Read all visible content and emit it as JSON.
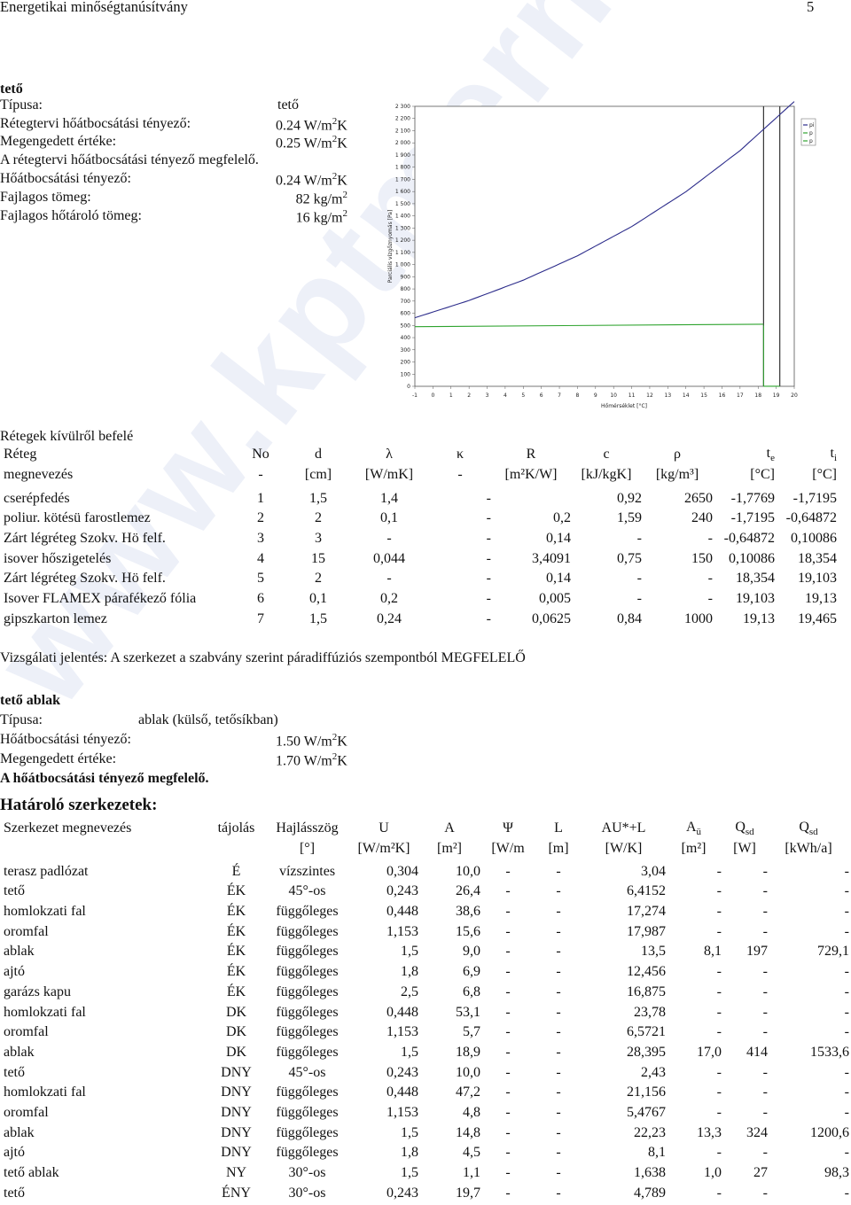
{
  "header": {
    "title": "Energetikai minőségtanúsítvány",
    "page": "5"
  },
  "roof": {
    "heading": "tető",
    "rows": [
      {
        "label": "Típusa:",
        "value": "tető"
      },
      {
        "label": "Rétegtervi hőátbocsátási tényező:",
        "value": "0.24 W/m",
        "sup": "2",
        "tail": "K"
      },
      {
        "label": "Megengedett értéke:",
        "value": "0.25 W/m",
        "sup": "2",
        "tail": "K"
      },
      {
        "label": "Hőátbocsátási tényező:",
        "value": "0.24 W/m",
        "sup": "2",
        "tail": "K"
      },
      {
        "label": "Fajlagos tömeg:",
        "value": "82 kg/m",
        "sup": "2",
        "tail": ""
      },
      {
        "label": "Fajlagos hőtároló tömeg:",
        "value": "16 kg/m",
        "sup": "2",
        "tail": ""
      }
    ],
    "statement": "A rétegtervi hőátbocsátási tényező megfelelő."
  },
  "chart_data": {
    "type": "line",
    "xlabel": "Hőmérséklet [°C]",
    "ylabel": "Parciális vízgőznyomás [Pa]",
    "xlim": [
      -1,
      20
    ],
    "ylim": [
      0,
      2300
    ],
    "xticks": [
      "-1",
      "0",
      "1",
      "2",
      "3",
      "4",
      "5",
      "6",
      "7",
      "8",
      "9",
      "10",
      "11",
      "12",
      "13",
      "14",
      "15",
      "16",
      "17",
      "18",
      "19",
      "20"
    ],
    "yticks": [
      "0",
      "100",
      "200",
      "300",
      "400",
      "500",
      "600",
      "700",
      "800",
      "900",
      "1 000",
      "1 100",
      "1 200",
      "1 300",
      "1 400",
      "1 500",
      "1 600",
      "1 700",
      "1 800",
      "1 900",
      "2 000",
      "2 100",
      "2 200",
      "2 300"
    ],
    "legend": [
      "pi",
      "p",
      "p"
    ],
    "series": [
      {
        "color": "#2b2b8a",
        "x": [
          -1,
          2,
          5,
          8,
          11,
          14,
          17,
          20
        ],
        "values": [
          563,
          705,
          872,
          1072,
          1312,
          1598,
          1937,
          2339
        ]
      },
      {
        "color": "#2ea32e",
        "x": [
          -1,
          18.3
        ],
        "values": [
          490,
          510
        ]
      },
      {
        "color": "#2ea32e",
        "x": [
          18.3,
          19.2
        ],
        "values": [
          1,
          1
        ]
      }
    ],
    "vlines": [
      18.3,
      19.2
    ]
  },
  "layers": {
    "title": "Rétegek kívülről befelé",
    "headers1": [
      "Réteg",
      "No",
      "d",
      "λ",
      "κ",
      "R",
      "c",
      "ρ",
      "t",
      "t"
    ],
    "headers2": [
      "megnevezés",
      "-",
      "[cm]",
      "[W/mK]",
      "-",
      "[m²K/W]",
      "[kJ/kgK]",
      "[kg/m³]",
      "[°C]",
      "[°C]"
    ],
    "te_sub": "e",
    "ti_sub": "i",
    "rows": [
      [
        "cserépfedés",
        "1",
        "1,5",
        "1,4",
        "-",
        "",
        "0,92",
        "2650",
        "-1,7769",
        "-1,7195"
      ],
      [
        "poliur. kötésü farostlemez",
        "2",
        "2",
        "0,1",
        "-",
        "0,2",
        "1,59",
        "240",
        "-1,7195",
        "-0,64872"
      ],
      [
        "Zárt légréteg Szokv. Hö felf.",
        "3",
        "3",
        "-",
        "-",
        "0,14",
        "-",
        "-",
        "-0,64872",
        "0,10086"
      ],
      [
        "isover hőszigetelés",
        "4",
        "15",
        "0,044",
        "-",
        "3,4091",
        "0,75",
        "150",
        "0,10086",
        "18,354"
      ],
      [
        "Zárt légréteg Szokv. Hö felf.",
        "5",
        "2",
        "-",
        "-",
        "0,14",
        "-",
        "-",
        "18,354",
        "19,103"
      ],
      [
        "Isover FLAMEX párafékező fólia",
        "6",
        "0,1",
        "0,2",
        "-",
        "0,005",
        "-",
        "-",
        "19,103",
        "19,13"
      ],
      [
        "gipszkarton lemez",
        "7",
        "1,5",
        "0,24",
        "-",
        "0,0625",
        "0,84",
        "1000",
        "19,13",
        "19,465"
      ]
    ],
    "report": "Vizsgálati jelentés: A szerkezet a szabvány szerint páradiffúziós szempontból MEGFELELŐ"
  },
  "window": {
    "heading": "tető ablak",
    "type_label": "Típusa:",
    "type_value": "ablak (külső, tetősíkban)",
    "u_label": "Hőátbocsátási tényező:",
    "u_value": "1.50 W/m",
    "limit_label": "Megengedett értéke:",
    "limit_value": "1.70 W/m",
    "sup": "2",
    "tail": "K",
    "statement": "A hőátbocsátási tényező megfelelő."
  },
  "boundary": {
    "title": "Határoló szerkezetek:",
    "headers1": [
      "Szerkezet megnevezés",
      "tájolás",
      "Hajlásszög",
      "U",
      "A",
      "Ψ",
      "L",
      "AU*+L",
      "A",
      "Q",
      "Q"
    ],
    "headers2": [
      "",
      "",
      "[°]",
      "[W/m²K]",
      "[m²]",
      "[W/m",
      "[m]",
      "[W/K]",
      "[m²]",
      "[W]",
      "[kWh/a]"
    ],
    "a_sub": "ü",
    "q_sub": "sd",
    "rows": [
      [
        "terasz padlózat",
        "É",
        "vízszintes",
        "0,304",
        "10,0",
        "-",
        "-",
        "3,04",
        "-",
        "-",
        "-"
      ],
      [
        "tető",
        "ÉK",
        "45°-os",
        "0,243",
        "26,4",
        "-",
        "-",
        "6,4152",
        "-",
        "-",
        "-"
      ],
      [
        "homlokzati fal",
        "ÉK",
        "függőleges",
        "0,448",
        "38,6",
        "-",
        "-",
        "17,274",
        "-",
        "-",
        "-"
      ],
      [
        "oromfal",
        "ÉK",
        "függőleges",
        "1,153",
        "15,6",
        "-",
        "-",
        "17,987",
        "-",
        "-",
        "-"
      ],
      [
        "ablak",
        "ÉK",
        "függőleges",
        "1,5",
        "9,0",
        "-",
        "-",
        "13,5",
        "8,1",
        "197",
        "729,1"
      ],
      [
        "ajtó",
        "ÉK",
        "függőleges",
        "1,8",
        "6,9",
        "-",
        "-",
        "12,456",
        "-",
        "-",
        "-"
      ],
      [
        "garázs kapu",
        "ÉK",
        "függőleges",
        "2,5",
        "6,8",
        "-",
        "-",
        "16,875",
        "-",
        "-",
        "-"
      ],
      [
        "homlokzati fal",
        "DK",
        "függőleges",
        "0,448",
        "53,1",
        "-",
        "-",
        "23,78",
        "-",
        "-",
        "-"
      ],
      [
        "oromfal",
        "DK",
        "függőleges",
        "1,153",
        "5,7",
        "-",
        "-",
        "6,5721",
        "-",
        "-",
        "-"
      ],
      [
        "ablak",
        "DK",
        "függőleges",
        "1,5",
        "18,9",
        "-",
        "-",
        "28,395",
        "17,0",
        "414",
        "1533,6"
      ],
      [
        "tető",
        "DNY",
        "45°-os",
        "0,243",
        "10,0",
        "-",
        "-",
        "2,43",
        "-",
        "-",
        "-"
      ],
      [
        "homlokzati fal",
        "DNY",
        "függőleges",
        "0,448",
        "47,2",
        "-",
        "-",
        "21,156",
        "-",
        "-",
        "-"
      ],
      [
        "oromfal",
        "DNY",
        "függőleges",
        "1,153",
        "4,8",
        "-",
        "-",
        "5,4767",
        "-",
        "-",
        "-"
      ],
      [
        "ablak",
        "DNY",
        "függőleges",
        "1,5",
        "14,8",
        "-",
        "-",
        "22,23",
        "13,3",
        "324",
        "1200,6"
      ],
      [
        "ajtó",
        "DNY",
        "függőleges",
        "1,8",
        "4,5",
        "-",
        "-",
        "8,1",
        "-",
        "-",
        "-"
      ],
      [
        "tető ablak",
        "NY",
        "30°-os",
        "1,5",
        "1,1",
        "-",
        "-",
        "1,638",
        "1,0",
        "27",
        "98,3"
      ],
      [
        "tető",
        "ÉNY",
        "30°-os",
        "0,243",
        "19,7",
        "-",
        "-",
        "4,789",
        "-",
        "-",
        "-"
      ]
    ]
  },
  "watermark": "www.kptmernokir"
}
